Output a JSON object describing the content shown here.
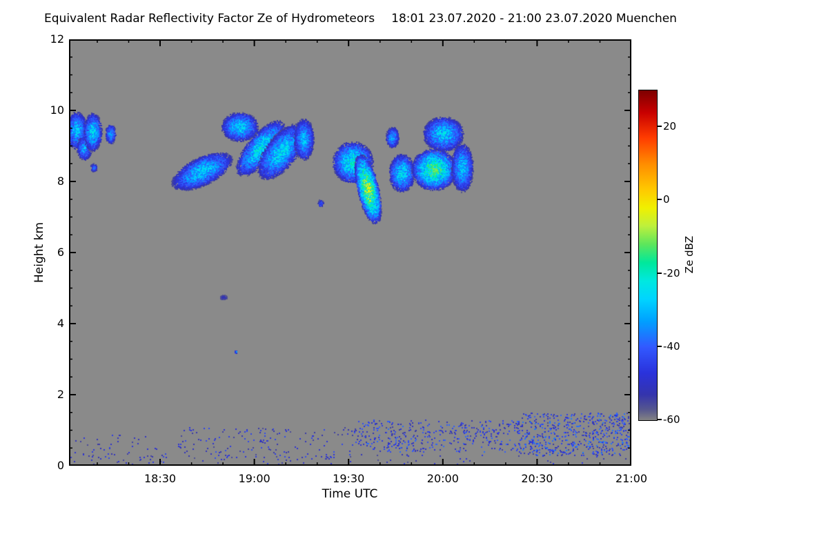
{
  "title": {
    "main": "Equivalent Radar Reflectivity Factor Ze of Hydrometeors",
    "range": "18:01 23.07.2020 - 21:00 23.07.2020 Muenchen"
  },
  "chart_data": {
    "type": "heatmap",
    "title": "Equivalent Radar Reflectivity Factor Ze of Hydrometeors",
    "period": "18:01 23.07.2020 - 21:00 23.07.2020",
    "station": "Muenchen",
    "xlabel": "Time UTC",
    "ylabel": "Height km",
    "units": "dBZ",
    "x_start_hours": 18.0167,
    "x_end_hours": 21.0,
    "x_ticks": [
      {
        "hours": 18.5,
        "label": "18:30"
      },
      {
        "hours": 19.0,
        "label": "19:00"
      },
      {
        "hours": 19.5,
        "label": "19:30"
      },
      {
        "hours": 20.0,
        "label": "20:00"
      },
      {
        "hours": 20.5,
        "label": "20:30"
      },
      {
        "hours": 21.0,
        "label": "21:00"
      }
    ],
    "x_minor_step_min": 10,
    "ylim": [
      0,
      12
    ],
    "y_ticks": [
      {
        "v": 0,
        "label": "0"
      },
      {
        "v": 2,
        "label": "2"
      },
      {
        "v": 4,
        "label": "4"
      },
      {
        "v": 6,
        "label": "6"
      },
      {
        "v": 8,
        "label": "8"
      },
      {
        "v": 10,
        "label": "10"
      },
      {
        "v": 12,
        "label": "12"
      }
    ],
    "y_minor_step": 0.5,
    "background_color": "#8a8a8a",
    "no_signal_dbz": -60,
    "colorbar": {
      "label": "Ze dBZ",
      "min": -60,
      "max": 30,
      "ticks": [
        {
          "v": 20,
          "label": "20"
        },
        {
          "v": 0,
          "label": "0"
        },
        {
          "v": -20,
          "label": "-20"
        },
        {
          "v": -40,
          "label": "-40"
        },
        {
          "v": -60,
          "label": "-60"
        }
      ],
      "colormap": [
        [
          -60,
          "#838383"
        ],
        [
          -57,
          "#55568f"
        ],
        [
          -53,
          "#3434ad"
        ],
        [
          -47,
          "#2a32dc"
        ],
        [
          -40,
          "#3259ff"
        ],
        [
          -33,
          "#00a0ff"
        ],
        [
          -27,
          "#00d4ff"
        ],
        [
          -22,
          "#00e8e0"
        ],
        [
          -17,
          "#00e89b"
        ],
        [
          -12,
          "#5ce65c"
        ],
        [
          -7,
          "#bef03c"
        ],
        [
          -2,
          "#f0f000"
        ],
        [
          3,
          "#ffc800"
        ],
        [
          10,
          "#ff8c00"
        ],
        [
          17,
          "#ff3c00"
        ],
        [
          24,
          "#c80000"
        ],
        [
          30,
          "#7d0000"
        ]
      ]
    },
    "echo_features": [
      {
        "t": 18.055,
        "h": 9.45,
        "dt": 0.055,
        "dh": 0.55,
        "dbz": -27
      },
      {
        "t": 18.095,
        "h": 8.95,
        "dt": 0.04,
        "dh": 0.35,
        "dbz": -30
      },
      {
        "t": 18.14,
        "h": 9.4,
        "dt": 0.05,
        "dh": 0.55,
        "dbz": -25
      },
      {
        "t": 18.145,
        "h": 8.4,
        "dt": 0.018,
        "dh": 0.12,
        "dbz": -36
      },
      {
        "t": 18.235,
        "h": 9.35,
        "dt": 0.028,
        "dh": 0.28,
        "dbz": -30
      },
      {
        "t": 18.72,
        "h": 8.3,
        "dt": 0.13,
        "dh": 0.55,
        "dbz": -26,
        "slant": 0.18
      },
      {
        "t": 18.92,
        "h": 9.55,
        "dt": 0.1,
        "dh": 0.42,
        "dbz": -26
      },
      {
        "t": 19.03,
        "h": 8.95,
        "dt": 0.09,
        "dh": 0.8,
        "dbz": -22,
        "slant": 0.12
      },
      {
        "t": 19.14,
        "h": 8.85,
        "dt": 0.1,
        "dh": 0.8,
        "dbz": -24,
        "slant": 0.1
      },
      {
        "t": 19.26,
        "h": 9.2,
        "dt": 0.055,
        "dh": 0.6,
        "dbz": -28
      },
      {
        "t": 19.35,
        "h": 7.4,
        "dt": 0.015,
        "dh": 0.1,
        "dbz": -38
      },
      {
        "t": 19.52,
        "h": 8.55,
        "dt": 0.11,
        "dh": 0.6,
        "dbz": -20
      },
      {
        "t": 19.6,
        "h": 7.8,
        "dt": 0.06,
        "dh": 1.0,
        "dbz": -6,
        "slant": -0.04
      },
      {
        "t": 19.73,
        "h": 9.25,
        "dt": 0.035,
        "dh": 0.3,
        "dbz": -29
      },
      {
        "t": 19.78,
        "h": 8.25,
        "dt": 0.07,
        "dh": 0.55,
        "dbz": -24
      },
      {
        "t": 19.95,
        "h": 8.35,
        "dt": 0.12,
        "dh": 0.6,
        "dbz": -13
      },
      {
        "t": 20.0,
        "h": 9.35,
        "dt": 0.11,
        "dh": 0.5,
        "dbz": -25
      },
      {
        "t": 20.1,
        "h": 8.4,
        "dt": 0.06,
        "dh": 0.7,
        "dbz": -27
      },
      {
        "t": 18.835,
        "h": 4.75,
        "dt": 0.02,
        "dh": 0.07,
        "dbz": -50,
        "fill": 3
      },
      {
        "t": 18.9,
        "h": 3.22,
        "dt": 0.006,
        "dh": 0.05,
        "dbz": -30
      }
    ],
    "surface_echoes": [
      {
        "t0": 18.02,
        "t1": 18.6,
        "h0": 0.05,
        "h1": 0.9,
        "density": 0.06,
        "dbz_min": -56,
        "dbz_max": -44
      },
      {
        "t0": 18.6,
        "t1": 19.55,
        "h0": 0.2,
        "h1": 1.1,
        "density": 0.1,
        "dbz_min": -56,
        "dbz_max": -42
      },
      {
        "t0": 19.55,
        "t1": 20.4,
        "h0": 0.4,
        "h1": 1.3,
        "density": 0.28,
        "dbz_min": -55,
        "dbz_max": -38
      },
      {
        "t0": 20.4,
        "t1": 21.0,
        "h0": 0.3,
        "h1": 1.5,
        "density": 0.45,
        "dbz_min": -55,
        "dbz_max": -36
      },
      {
        "t0": 18.02,
        "t1": 21.0,
        "h0": 0.02,
        "h1": 0.35,
        "density": 0.05,
        "dbz_min": -56,
        "dbz_max": -45
      }
    ]
  }
}
